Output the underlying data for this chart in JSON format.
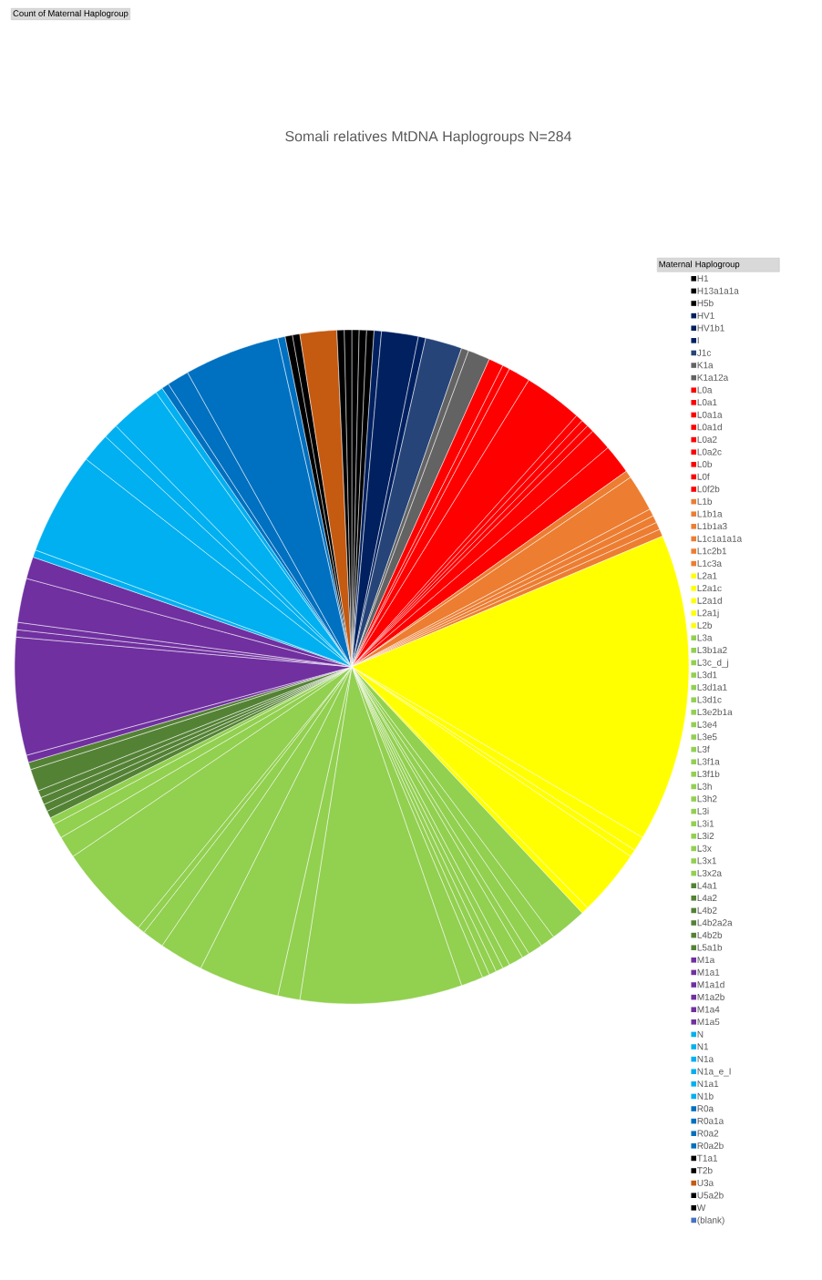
{
  "chart_data": {
    "type": "pie",
    "title": "Somali relatives MtDNA Haplogroups N=284",
    "annotations": [
      "Count of Maternal Haplogroup"
    ],
    "legend_title": "Maternal Haplogroup",
    "legend": "right",
    "categories": [
      "H1",
      "H13a1a1a",
      "H5b",
      "HV1",
      "HV1b1",
      "I",
      "J1c",
      "K1a",
      "K1a12a",
      "L0a",
      "L0a1",
      "L0a1a",
      "L0a1d",
      "L0a2",
      "L0a2c",
      "L0b",
      "L0f",
      "L0f2b",
      "L1b",
      "L1b1a",
      "L1b1a3",
      "L1c1a1a1a",
      "L1c2b1",
      "L1c3a",
      "L2a1",
      "L2a1c",
      "L2a1d",
      "L2a1j",
      "L2b",
      "L3a",
      "L3b1a2",
      "L3c_d_j",
      "L3d1",
      "L3d1a1",
      "L3d1c",
      "L3e2b1a",
      "L3e4",
      "L3e5",
      "L3f",
      "L3f1a",
      "L3f1b",
      "L3h",
      "L3h2",
      "L3i",
      "L3i1",
      "L3i2",
      "L3x",
      "L3x1",
      "L3x2a",
      "L4a1",
      "L4a2",
      "L4b2",
      "L4b2a2a",
      "L4b2b",
      "L5a1b",
      "M1a",
      "M1a1",
      "M1a1d",
      "M1a2b",
      "M1a4",
      "M1a5",
      "N",
      "N1",
      "N1a",
      "N1a_e_I",
      "N1a1",
      "N1b",
      "R0a",
      "R0a1a",
      "R0a2",
      "R0a2b",
      "T1a1",
      "T2b",
      "U3a",
      "U5a2b",
      "W",
      "(blank)"
    ],
    "values": [
      1,
      1,
      1,
      1,
      5,
      1,
      5,
      1,
      3,
      2,
      1,
      3,
      8,
      1,
      1,
      1,
      3,
      4,
      1,
      5,
      1,
      1,
      1,
      1,
      42,
      2,
      1,
      9,
      1,
      5,
      2,
      2,
      1,
      2,
      1,
      1,
      1,
      1,
      3,
      22,
      3,
      11,
      6,
      3,
      1,
      13,
      3,
      2,
      1,
      1,
      1,
      1,
      1,
      3,
      1,
      1,
      16,
      1,
      1,
      6,
      3,
      1,
      14,
      4,
      2,
      7,
      1,
      1,
      3,
      13,
      1,
      1,
      1,
      5,
      1,
      1,
      0
    ],
    "colors": [
      "#000000",
      "#000000",
      "#000000",
      "#002060",
      "#002060",
      "#002060",
      "#264478",
      "#636363",
      "#636363",
      "#FF0000",
      "#FF0000",
      "#FF0000",
      "#FF0000",
      "#FF0000",
      "#FF0000",
      "#FF0000",
      "#FF0000",
      "#FF0000",
      "#ED7D31",
      "#ED7D31",
      "#ED7D31",
      "#ED7D31",
      "#ED7D31",
      "#ED7D31",
      "#FFFF00",
      "#FFFF00",
      "#FFFF00",
      "#FFFF00",
      "#FFFF00",
      "#92D050",
      "#92D050",
      "#92D050",
      "#92D050",
      "#92D050",
      "#92D050",
      "#92D050",
      "#92D050",
      "#92D050",
      "#92D050",
      "#92D050",
      "#92D050",
      "#92D050",
      "#92D050",
      "#92D050",
      "#92D050",
      "#92D050",
      "#92D050",
      "#92D050",
      "#92D050",
      "#548235",
      "#548235",
      "#548235",
      "#548235",
      "#548235",
      "#548235",
      "#7030A0",
      "#7030A0",
      "#7030A0",
      "#7030A0",
      "#7030A0",
      "#7030A0",
      "#00B0F0",
      "#00B0F0",
      "#00B0F0",
      "#00B0F0",
      "#00B0F0",
      "#00B0F0",
      "#0070C0",
      "#0070C0",
      "#0070C0",
      "#0070C0",
      "#000000",
      "#000000",
      "#C55A11",
      "#000000",
      "#000000",
      "#4472C4"
    ]
  }
}
